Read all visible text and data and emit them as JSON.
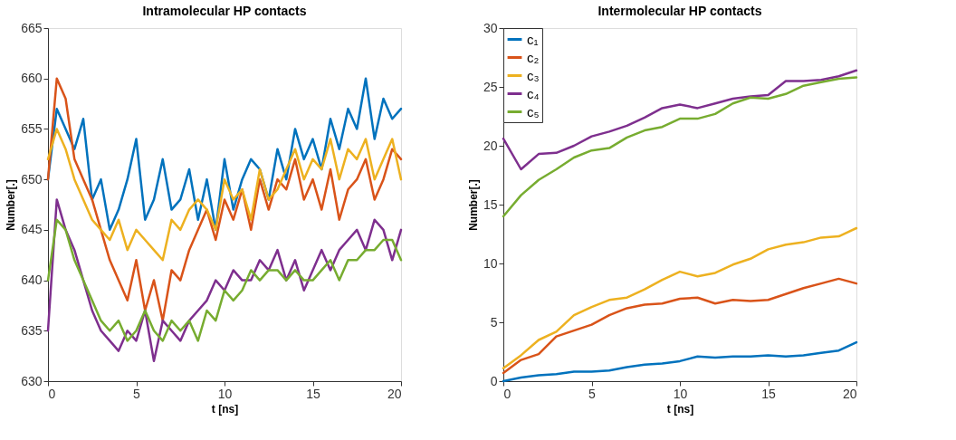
{
  "chart_data": [
    {
      "type": "line",
      "title": "Intramolecular HP contacts",
      "xlabel": "t [ns]",
      "ylabel": "Number[.]",
      "xlim": [
        0,
        20
      ],
      "ylim": [
        630,
        665
      ],
      "xticks": [
        0,
        5,
        10,
        15,
        20
      ],
      "yticks": [
        630,
        635,
        640,
        645,
        650,
        655,
        660,
        665
      ],
      "grid": false,
      "line_style": "solid",
      "x": [
        0,
        0.5,
        1,
        1.5,
        2,
        2.5,
        3,
        3.5,
        4,
        4.5,
        5,
        5.5,
        6,
        6.5,
        7,
        7.5,
        8,
        8.5,
        9,
        9.5,
        10,
        10.5,
        11,
        11.5,
        12,
        12.5,
        13,
        13.5,
        14,
        14.5,
        15,
        15.5,
        16,
        16.5,
        17,
        17.5,
        18,
        18.5,
        19,
        19.5,
        20
      ],
      "series": [
        {
          "color": "#0072bd",
          "values": [
            650,
            657,
            655,
            653,
            656,
            648,
            650,
            645,
            647,
            650,
            654,
            646,
            648,
            652,
            647,
            648,
            651,
            646,
            650,
            645,
            652,
            647,
            650,
            652,
            651,
            648,
            653,
            650,
            655,
            652,
            654,
            651,
            656,
            653,
            657,
            655,
            660,
            654,
            658,
            656,
            657
          ]
        },
        {
          "color": "#d95319",
          "values": [
            650,
            660,
            658,
            652,
            650,
            648,
            645,
            642,
            640,
            638,
            642,
            637,
            640,
            636,
            641,
            640,
            643,
            645,
            647,
            644,
            648,
            646,
            649,
            645,
            650,
            647,
            650,
            649,
            652,
            648,
            650,
            647,
            651,
            646,
            649,
            650,
            652,
            648,
            650,
            653,
            652
          ]
        },
        {
          "color": "#edb120",
          "values": [
            652,
            655,
            653,
            650,
            648,
            646,
            645,
            644,
            646,
            643,
            645,
            644,
            643,
            642,
            646,
            645,
            647,
            648,
            647,
            645,
            650,
            648,
            649,
            646,
            651,
            648,
            649,
            651,
            653,
            650,
            652,
            651,
            654,
            650,
            653,
            652,
            654,
            650,
            652,
            654,
            650
          ]
        },
        {
          "color": "#7e2f8e",
          "values": [
            635,
            648,
            645,
            643,
            640,
            637,
            635,
            634,
            633,
            635,
            634,
            637,
            632,
            636,
            635,
            634,
            636,
            637,
            638,
            640,
            639,
            641,
            640,
            640,
            642,
            641,
            643,
            640,
            642,
            639,
            641,
            643,
            641,
            643,
            644,
            645,
            643,
            646,
            645,
            642,
            645
          ]
        },
        {
          "color": "#77ac30",
          "values": [
            640,
            646,
            645,
            642,
            640,
            638,
            636,
            635,
            636,
            634,
            635,
            637,
            635,
            634,
            636,
            635,
            636,
            634,
            637,
            636,
            639,
            638,
            639,
            641,
            640,
            641,
            641,
            640,
            641,
            640,
            640,
            641,
            642,
            640,
            642,
            642,
            643,
            643,
            644,
            644,
            642
          ]
        }
      ]
    },
    {
      "type": "line",
      "title": "Intermolecular HP contacts",
      "xlabel": "t [ns]",
      "ylabel": "Number[.]",
      "xlim": [
        0,
        20
      ],
      "ylim": [
        0,
        30
      ],
      "xticks": [
        0,
        5,
        10,
        15,
        20
      ],
      "yticks": [
        0,
        5,
        10,
        15,
        20,
        25,
        30
      ],
      "grid": false,
      "legend": "top left",
      "line_style": "solid",
      "x": [
        0,
        1,
        2,
        3,
        4,
        5,
        6,
        7,
        8,
        9,
        10,
        11,
        12,
        13,
        14,
        15,
        16,
        17,
        18,
        19,
        20
      ],
      "series": [
        {
          "name": "c₁",
          "color": "#0072bd",
          "values": [
            0,
            0.3,
            0.5,
            0.6,
            0.8,
            0.8,
            0.9,
            1.2,
            1.4,
            1.5,
            1.7,
            2.1,
            2.0,
            2.1,
            2.1,
            2.2,
            2.1,
            2.2,
            2.4,
            2.6,
            3.3
          ]
        },
        {
          "name": "c₂",
          "color": "#d95319",
          "values": [
            0.7,
            1.8,
            2.3,
            3.8,
            4.3,
            4.8,
            5.6,
            6.2,
            6.5,
            6.6,
            7.0,
            7.1,
            6.6,
            6.9,
            6.8,
            6.9,
            7.4,
            7.9,
            8.3,
            8.7,
            8.3
          ]
        },
        {
          "name": "c₃",
          "color": "#edb120",
          "values": [
            1.1,
            2.2,
            3.5,
            4.2,
            5.6,
            6.3,
            6.9,
            7.1,
            7.8,
            8.6,
            9.3,
            8.9,
            9.2,
            9.9,
            10.4,
            11.2,
            11.6,
            11.8,
            12.2,
            12.3,
            13.0
          ]
        },
        {
          "name": "c₄",
          "color": "#7e2f8e",
          "values": [
            20.6,
            18.0,
            19.3,
            19.4,
            20.0,
            20.8,
            21.2,
            21.7,
            22.4,
            23.2,
            23.5,
            23.2,
            23.6,
            24.0,
            24.2,
            24.3,
            25.5,
            25.5,
            25.6,
            25.9,
            26.4
          ]
        },
        {
          "name": "c₅",
          "color": "#77ac30",
          "values": [
            14.0,
            15.8,
            17.1,
            18.0,
            19.0,
            19.6,
            19.8,
            20.7,
            21.3,
            21.6,
            22.3,
            22.3,
            22.7,
            23.6,
            24.1,
            24.0,
            24.4,
            25.1,
            25.4,
            25.7,
            25.8
          ]
        }
      ]
    }
  ]
}
